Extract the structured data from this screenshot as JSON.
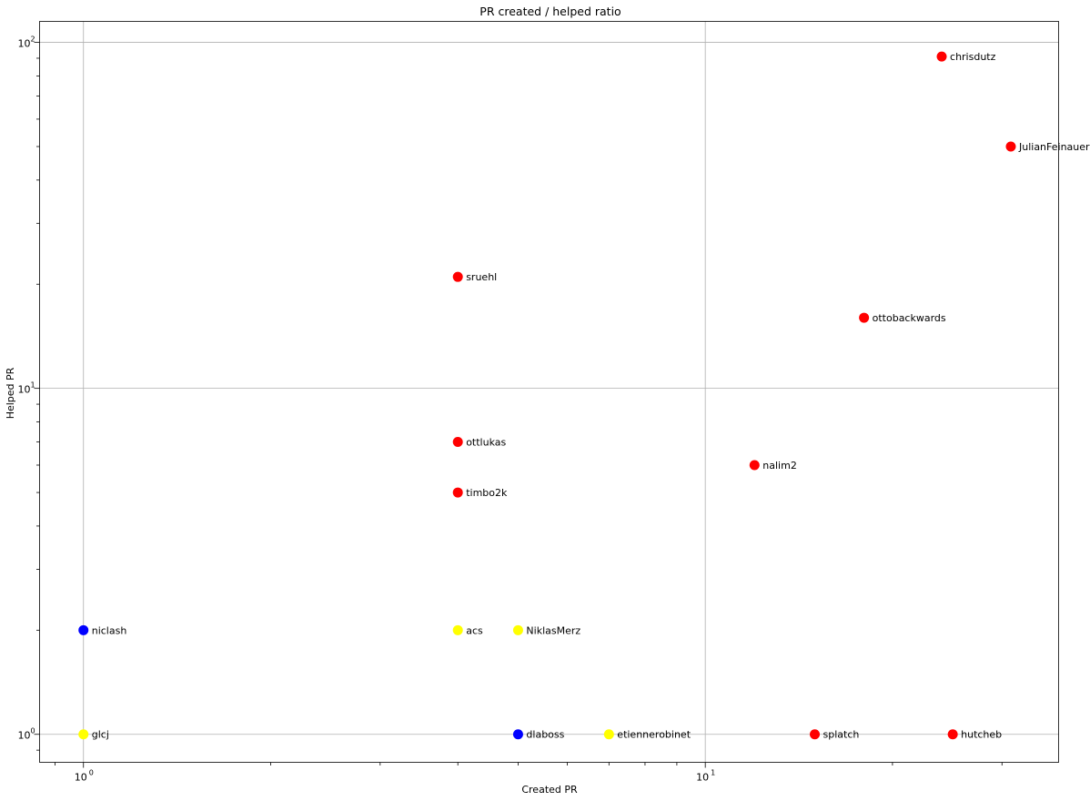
{
  "chart_data": {
    "type": "scatter",
    "title": "PR created / helped ratio",
    "xlabel": "Created PR",
    "ylabel": "Helped PR",
    "xscale": "log",
    "yscale": "log",
    "xlim": [
      0.85,
      37
    ],
    "ylim": [
      0.83,
      115
    ],
    "grid": true,
    "x_major_ticks": [
      {
        "value": 1,
        "base": "10",
        "exp": "0"
      },
      {
        "value": 10,
        "base": "10",
        "exp": "1"
      }
    ],
    "y_major_ticks": [
      {
        "value": 1,
        "base": "10",
        "exp": "0"
      },
      {
        "value": 10,
        "base": "10",
        "exp": "1"
      },
      {
        "value": 100,
        "base": "10",
        "exp": "2"
      }
    ],
    "colors": {
      "red": "#ff0000",
      "yellow": "#ffff00",
      "blue": "#0000ff"
    },
    "points": [
      {
        "label": "chrisdutz",
        "x": 24,
        "y": 91,
        "color": "red"
      },
      {
        "label": "JulianFeinauer",
        "x": 31,
        "y": 50,
        "color": "red"
      },
      {
        "label": "sruehl",
        "x": 4,
        "y": 21,
        "color": "red"
      },
      {
        "label": "ottobackwards",
        "x": 18,
        "y": 16,
        "color": "red"
      },
      {
        "label": "ottlukas",
        "x": 4,
        "y": 7,
        "color": "red"
      },
      {
        "label": "nalim2",
        "x": 12,
        "y": 6,
        "color": "red"
      },
      {
        "label": "timbo2k",
        "x": 4,
        "y": 5,
        "color": "red"
      },
      {
        "label": "niclash",
        "x": 1,
        "y": 2,
        "color": "blue"
      },
      {
        "label": "acs",
        "x": 4,
        "y": 2,
        "color": "yellow"
      },
      {
        "label": "NiklasMerz",
        "x": 5,
        "y": 2,
        "color": "yellow"
      },
      {
        "label": "glcj",
        "x": 1,
        "y": 1,
        "color": "yellow"
      },
      {
        "label": "dlaboss",
        "x": 5,
        "y": 1,
        "color": "blue"
      },
      {
        "label": "etiennerobinet",
        "x": 7,
        "y": 1,
        "color": "yellow"
      },
      {
        "label": "splatch",
        "x": 15,
        "y": 1,
        "color": "red"
      },
      {
        "label": "hutcheb",
        "x": 25,
        "y": 1,
        "color": "red"
      }
    ]
  }
}
